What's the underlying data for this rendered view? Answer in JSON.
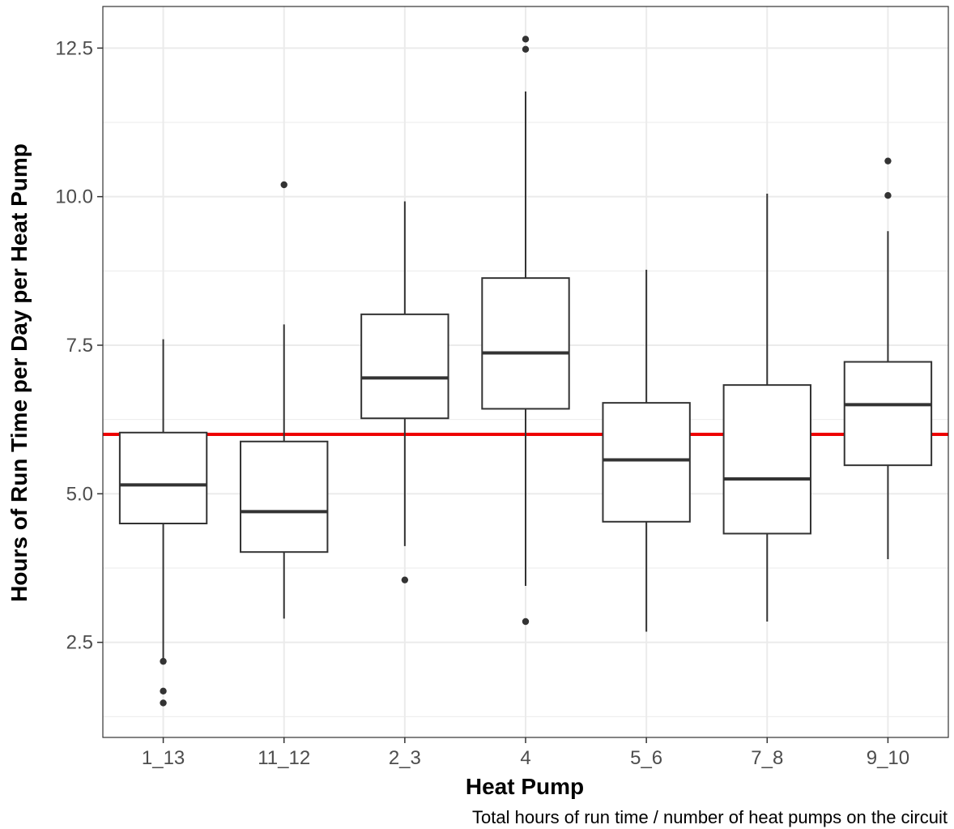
{
  "chart_data": {
    "type": "boxplot",
    "title": "",
    "xlabel": "Heat Pump",
    "ylabel": "Hours of Run Time per Day per Heat Pump",
    "caption": "Total hours of run time / number of heat pumps on the circuit",
    "ylim": [
      0.9,
      13.2
    ],
    "y_ticks": [
      2.5,
      5.0,
      7.5,
      10.0,
      12.5
    ],
    "y_tick_labels": [
      "2.5",
      "5.0",
      "7.5",
      "10.0",
      "12.5"
    ],
    "grid": true,
    "reference_line": {
      "y": 6.0,
      "color": "#ee0000"
    },
    "categories": [
      "1_13",
      "11_12",
      "2_3",
      "4",
      "5_6",
      "7_8",
      "9_10"
    ],
    "boxes": [
      {
        "category": "1_13",
        "whisker_low": 2.2,
        "q1": 4.5,
        "median": 5.15,
        "q3": 6.03,
        "whisker_high": 7.6,
        "outliers": [
          2.18,
          1.68,
          1.48
        ]
      },
      {
        "category": "11_12",
        "whisker_low": 2.9,
        "q1": 4.02,
        "median": 4.7,
        "q3": 5.88,
        "whisker_high": 7.85,
        "outliers": [
          10.2
        ]
      },
      {
        "category": "2_3",
        "whisker_low": 4.12,
        "q1": 6.27,
        "median": 6.95,
        "q3": 8.02,
        "whisker_high": 9.92,
        "outliers": [
          3.55
        ]
      },
      {
        "category": "4",
        "whisker_low": 3.45,
        "q1": 6.43,
        "median": 7.37,
        "q3": 8.63,
        "whisker_high": 11.77,
        "outliers": [
          12.65,
          12.48,
          2.85
        ]
      },
      {
        "category": "5_6",
        "whisker_low": 2.68,
        "q1": 4.53,
        "median": 5.57,
        "q3": 6.53,
        "whisker_high": 8.77,
        "outliers": []
      },
      {
        "category": "7_8",
        "whisker_low": 2.85,
        "q1": 4.33,
        "median": 5.25,
        "q3": 6.83,
        "whisker_high": 10.05,
        "outliers": []
      },
      {
        "category": "9_10",
        "whisker_low": 3.9,
        "q1": 5.48,
        "median": 6.5,
        "q3": 7.22,
        "whisker_high": 9.42,
        "outliers": [
          10.6,
          10.02
        ]
      }
    ],
    "colors": {
      "box_line": "#333333",
      "box_fill": "#ffffff",
      "grid": "#ebebeb",
      "panel_border": "#333333"
    }
  }
}
